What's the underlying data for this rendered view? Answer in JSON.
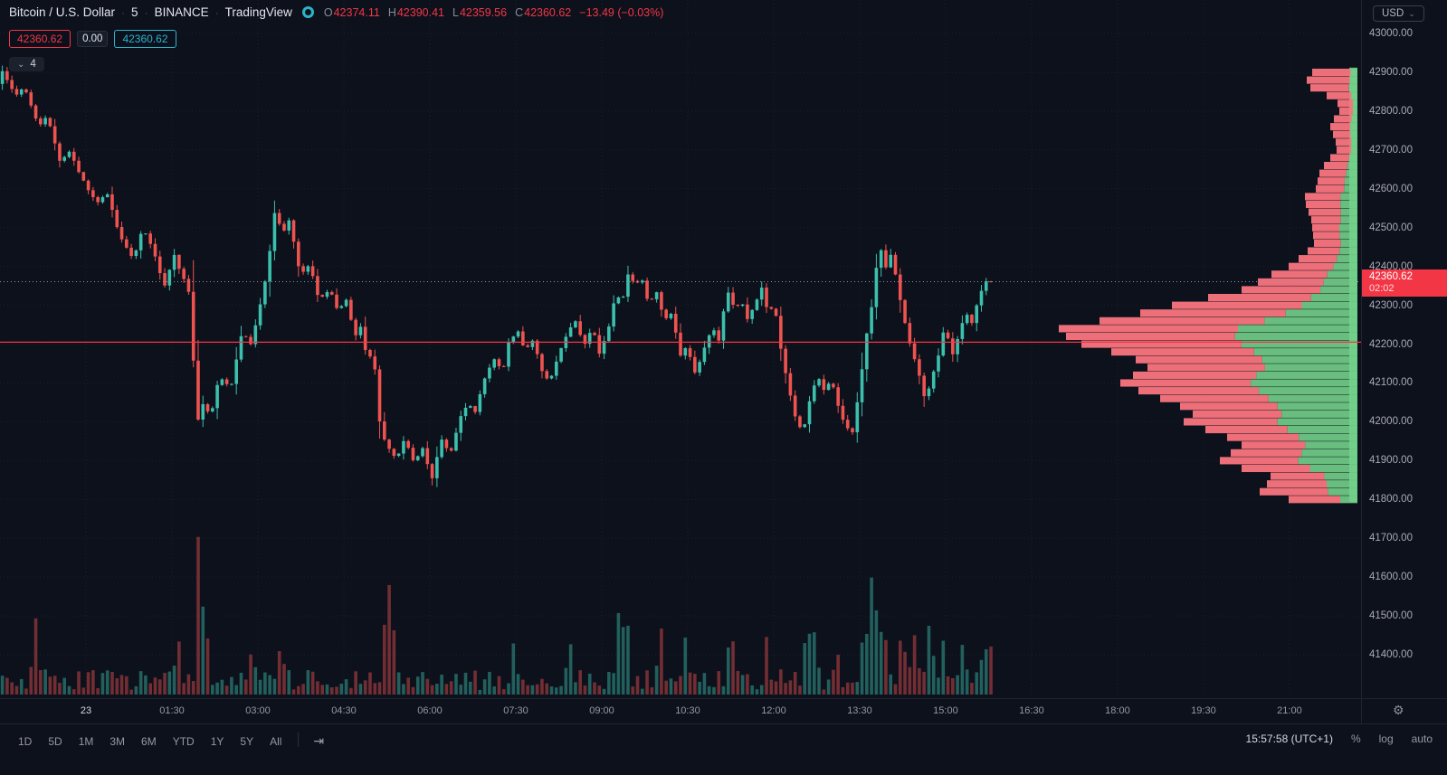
{
  "header": {
    "symbol": "Bitcoin / U.S. Dollar",
    "interval": "5",
    "exchange": "BINANCE",
    "brand": "TradingView",
    "separator": "·",
    "ohlc": {
      "o_label": "O",
      "o": "42374.11",
      "h_label": "H",
      "h": "42390.41",
      "l_label": "L",
      "l": "42359.56",
      "c_label": "C",
      "c": "42360.62",
      "change": "−13.49 (−0.03%)"
    },
    "bid": "42360.62",
    "spread": "0.00",
    "ask": "42360.62",
    "objects_pill": {
      "chevron": "⌄",
      "count": "4"
    },
    "currency_button": {
      "label": "USD",
      "chevron": "⌄"
    }
  },
  "price_axis": {
    "labels": [
      "43000.00",
      "42900.00",
      "42800.00",
      "42700.00",
      "42600.00",
      "42500.00",
      "42400.00",
      "42300.00",
      "42200.00",
      "42100.00",
      "42000.00",
      "41900.00",
      "41800.00",
      "41700.00",
      "41600.00",
      "41500.00",
      "41400.00"
    ],
    "current": {
      "price": "42360.62",
      "countdown": "02:02"
    }
  },
  "time_axis": {
    "labels": [
      {
        "text": "23",
        "t": 0,
        "day": true
      },
      {
        "text": "01:30",
        "t": 90
      },
      {
        "text": "03:00",
        "t": 180
      },
      {
        "text": "04:30",
        "t": 270
      },
      {
        "text": "06:00",
        "t": 360
      },
      {
        "text": "07:30",
        "t": 450
      },
      {
        "text": "09:00",
        "t": 540
      },
      {
        "text": "10:30",
        "t": 630
      },
      {
        "text": "12:00",
        "t": 720
      },
      {
        "text": "13:30",
        "t": 810
      },
      {
        "text": "15:00",
        "t": 900
      },
      {
        "text": "16:30",
        "t": 990
      },
      {
        "text": "18:00",
        "t": 1080
      },
      {
        "text": "19:30",
        "t": 1170
      },
      {
        "text": "21:00",
        "t": 1260
      }
    ]
  },
  "toolbar": {
    "ranges": [
      "1D",
      "5D",
      "1M",
      "3M",
      "6M",
      "YTD",
      "1Y",
      "5Y",
      "All"
    ],
    "goto_icon": "⇥",
    "clock": "15:57:58",
    "timezone": "(UTC+1)",
    "percent": "%",
    "log": "log",
    "auto": "auto",
    "gear": "⚙"
  },
  "colors": {
    "bg": "#0d111c",
    "up": "#3bc0ad",
    "down": "#ef5350",
    "vol_up": "rgba(59,192,173,0.45)",
    "vol_down": "rgba(239,83,80,0.45)",
    "profile_red": "#f9757e",
    "profile_green": "#72d08b",
    "accent_red": "#f23645",
    "teal": "#2ab5c9",
    "grid": "rgba(145,155,175,0.10)",
    "dotted_line": "#8f95a3"
  },
  "chart_data": {
    "type": "candlestick",
    "title": "Bitcoin / U.S. Dollar, 5, BINANCE",
    "timeframe_minutes": 5,
    "last": 42360.62,
    "change": -13.49,
    "change_pct": -0.03,
    "ylim": [
      41350,
      43080
    ],
    "y_tick_step": 100,
    "levels": {
      "red_line": 42205,
      "current_price": 42360.62
    },
    "price_path": [
      [
        -90,
        42870
      ],
      [
        -85,
        42905
      ],
      [
        -71,
        42840
      ],
      [
        -62,
        42862
      ],
      [
        -47,
        42760
      ],
      [
        -38,
        42785
      ],
      [
        -24,
        42660
      ],
      [
        -16,
        42700
      ],
      [
        0,
        42620
      ],
      [
        14,
        42560
      ],
      [
        24,
        42592
      ],
      [
        38,
        42478
      ],
      [
        52,
        42420
      ],
      [
        62,
        42500
      ],
      [
        71,
        42452
      ],
      [
        85,
        42348
      ],
      [
        95,
        42428
      ],
      [
        112,
        42320
      ],
      [
        118,
        41992
      ],
      [
        126,
        42052
      ],
      [
        133,
        42008
      ],
      [
        142,
        42118
      ],
      [
        154,
        42086
      ],
      [
        166,
        42230
      ],
      [
        175,
        42200
      ],
      [
        187,
        42320
      ],
      [
        194,
        42420
      ],
      [
        201,
        42558
      ],
      [
        208,
        42478
      ],
      [
        215,
        42520
      ],
      [
        227,
        42380
      ],
      [
        237,
        42402
      ],
      [
        246,
        42318
      ],
      [
        259,
        42338
      ],
      [
        264,
        42288
      ],
      [
        275,
        42312
      ],
      [
        284,
        42218
      ],
      [
        291,
        42252
      ],
      [
        297,
        42148
      ],
      [
        303,
        42188
      ],
      [
        310,
        41998
      ],
      [
        317,
        41938
      ],
      [
        327,
        41906
      ],
      [
        336,
        41952
      ],
      [
        346,
        41898
      ],
      [
        355,
        41930
      ],
      [
        365,
        41852
      ],
      [
        374,
        41958
      ],
      [
        384,
        41918
      ],
      [
        393,
        42002
      ],
      [
        403,
        42052
      ],
      [
        410,
        42022
      ],
      [
        421,
        42122
      ],
      [
        431,
        42162
      ],
      [
        439,
        42128
      ],
      [
        445,
        42202
      ],
      [
        455,
        42232
      ],
      [
        462,
        42178
      ],
      [
        471,
        42212
      ],
      [
        478,
        42142
      ],
      [
        488,
        42098
      ],
      [
        495,
        42158
      ],
      [
        505,
        42222
      ],
      [
        514,
        42262
      ],
      [
        524,
        42198
      ],
      [
        533,
        42242
      ],
      [
        540,
        42178
      ],
      [
        548,
        42222
      ],
      [
        557,
        42332
      ],
      [
        564,
        42308
      ],
      [
        570,
        42382
      ],
      [
        578,
        42348
      ],
      [
        584,
        42372
      ],
      [
        592,
        42302
      ],
      [
        600,
        42332
      ],
      [
        608,
        42258
      ],
      [
        616,
        42282
      ],
      [
        625,
        42168
      ],
      [
        632,
        42202
      ],
      [
        639,
        42118
      ],
      [
        649,
        42182
      ],
      [
        658,
        42242
      ],
      [
        666,
        42208
      ],
      [
        673,
        42342
      ],
      [
        682,
        42288
      ],
      [
        689,
        42312
      ],
      [
        696,
        42258
      ],
      [
        704,
        42312
      ],
      [
        710,
        42342
      ],
      [
        717,
        42278
      ],
      [
        723,
        42302
      ],
      [
        730,
        42188
      ],
      [
        738,
        42088
      ],
      [
        745,
        42012
      ],
      [
        753,
        41968
      ],
      [
        761,
        42062
      ],
      [
        768,
        42122
      ],
      [
        776,
        42078
      ],
      [
        783,
        42112
      ],
      [
        791,
        42028
      ],
      [
        798,
        41988
      ],
      [
        805,
        41972
      ],
      [
        812,
        42082
      ],
      [
        819,
        42212
      ],
      [
        826,
        42312
      ],
      [
        833,
        42462
      ],
      [
        840,
        42398
      ],
      [
        846,
        42438
      ],
      [
        852,
        42348
      ],
      [
        859,
        42268
      ],
      [
        866,
        42188
      ],
      [
        874,
        42128
      ],
      [
        881,
        42058
      ],
      [
        888,
        42112
      ],
      [
        895,
        42168
      ],
      [
        902,
        42252
      ],
      [
        909,
        42168
      ],
      [
        916,
        42222
      ],
      [
        923,
        42282
      ],
      [
        931,
        42252
      ],
      [
        937,
        42322
      ],
      [
        944,
        42362
      ],
      [
        950,
        42360.62
      ]
    ],
    "volume_spikes": [
      [
        -54,
        66
      ],
      [
        95,
        48
      ],
      [
        116,
        175
      ],
      [
        123,
        55
      ],
      [
        171,
        40
      ],
      [
        201,
        44
      ],
      [
        313,
        130
      ],
      [
        319,
        48
      ],
      [
        445,
        40
      ],
      [
        505,
        42
      ],
      [
        557,
        105
      ],
      [
        564,
        58
      ],
      [
        600,
        46
      ],
      [
        625,
        44
      ],
      [
        673,
        56
      ],
      [
        710,
        40
      ],
      [
        753,
        70
      ],
      [
        761,
        46
      ],
      [
        783,
        40
      ],
      [
        812,
        55
      ],
      [
        819,
        118
      ],
      [
        826,
        74
      ],
      [
        833,
        60
      ],
      [
        852,
        56
      ],
      [
        866,
        62
      ],
      [
        881,
        58
      ],
      [
        895,
        46
      ],
      [
        916,
        40
      ],
      [
        937,
        44
      ],
      [
        944,
        50
      ]
    ],
    "volume_profile": {
      "max_width": 330,
      "rows": [
        [
          42900,
          50,
          0.15
        ],
        [
          42880,
          56,
          0.15
        ],
        [
          42860,
          52,
          0.18
        ],
        [
          42840,
          34,
          0.2
        ],
        [
          42820,
          22,
          0.22
        ],
        [
          42800,
          20,
          0.25
        ],
        [
          42780,
          26,
          0.25
        ],
        [
          42760,
          30,
          0.26
        ],
        [
          42740,
          27,
          0.28
        ],
        [
          42720,
          24,
          0.28
        ],
        [
          42700,
          23,
          0.3
        ],
        [
          42680,
          30,
          0.3
        ],
        [
          42660,
          37,
          0.3
        ],
        [
          42640,
          42,
          0.3
        ],
        [
          42620,
          44,
          0.32
        ],
        [
          42600,
          46,
          0.32
        ],
        [
          42580,
          58,
          0.32
        ],
        [
          42560,
          57,
          0.33
        ],
        [
          42540,
          54,
          0.34
        ],
        [
          42520,
          51,
          0.36
        ],
        [
          42500,
          50,
          0.4
        ],
        [
          42480,
          49,
          0.4
        ],
        [
          42460,
          48,
          0.38
        ],
        [
          42440,
          55,
          0.36
        ],
        [
          42420,
          65,
          0.35
        ],
        [
          42400,
          76,
          0.35
        ],
        [
          42380,
          95,
          0.35
        ],
        [
          42360,
          110,
          0.34
        ],
        [
          42340,
          128,
          0.32
        ],
        [
          42320,
          165,
          0.31
        ],
        [
          42300,
          205,
          0.3
        ],
        [
          42280,
          240,
          0.33
        ],
        [
          42260,
          285,
          0.36
        ],
        [
          42240,
          330,
          0.4
        ],
        [
          42220,
          322,
          0.42
        ],
        [
          42200,
          305,
          0.42
        ],
        [
          42180,
          272,
          0.42
        ],
        [
          42160,
          245,
          0.43
        ],
        [
          42140,
          232,
          0.44
        ],
        [
          42120,
          248,
          0.45
        ],
        [
          42100,
          262,
          0.45
        ],
        [
          42080,
          242,
          0.45
        ],
        [
          42060,
          218,
          0.45
        ],
        [
          42040,
          196,
          0.45
        ],
        [
          42020,
          182,
          0.46
        ],
        [
          42000,
          192,
          0.46
        ],
        [
          41980,
          168,
          0.46
        ],
        [
          41960,
          144,
          0.45
        ],
        [
          41940,
          128,
          0.45
        ],
        [
          41920,
          140,
          0.44
        ],
        [
          41900,
          152,
          0.43
        ],
        [
          41880,
          128,
          0.41
        ],
        [
          41860,
          96,
          0.38
        ],
        [
          41840,
          100,
          0.34
        ],
        [
          41820,
          108,
          0.3
        ],
        [
          41800,
          76,
          0.25
        ]
      ]
    }
  }
}
